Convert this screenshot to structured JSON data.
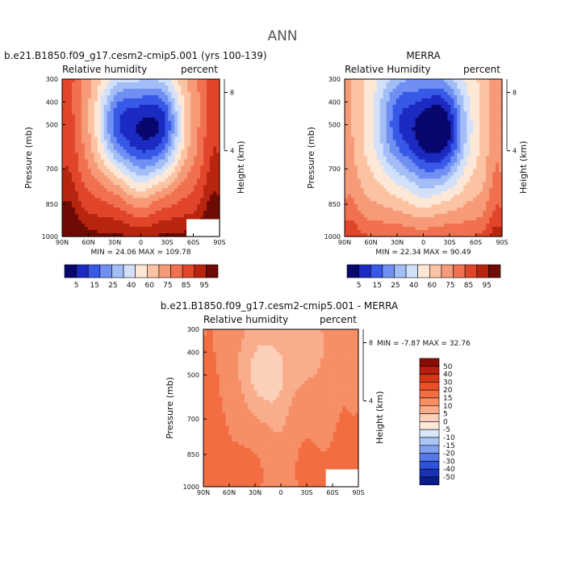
{
  "figure": {
    "title": "ANN"
  },
  "chart_data": [
    {
      "type": "heatmap",
      "id": "model",
      "title": "b.e21.B1850.f09_g17.cesm2-cmip5.001 (yrs 100-139)",
      "variable_label": "Relative humidity",
      "units_label": "percent",
      "ylabel": "Pressure (mb)",
      "ylabel_right": "Height (km)",
      "x_ticks": [
        "90N",
        "60N",
        "30N",
        "0",
        "30S",
        "60S",
        "90S"
      ],
      "y_ticks": [
        "300",
        "400",
        "500",
        "700",
        "850",
        "1000"
      ],
      "height_ticks": [
        "8",
        "4"
      ],
      "stats_text": "MIN = 24.06   MAX = 109.78",
      "min": 24.06,
      "max": 109.78
    },
    {
      "type": "heatmap",
      "id": "obs",
      "title": "MERRA",
      "variable_label": "Relative Humidity",
      "units_label": "percent",
      "ylabel": "Pressure (mb)",
      "ylabel_right": "Height (km)",
      "x_ticks": [
        "90N",
        "60N",
        "30N",
        "0",
        "30S",
        "60S",
        "90S"
      ],
      "y_ticks": [
        "300",
        "400",
        "500",
        "700",
        "850",
        "1000"
      ],
      "height_ticks": [
        "8",
        "4"
      ],
      "stats_text": "MIN = 22.34   MAX = 90.49",
      "min": 22.34,
      "max": 90.49
    },
    {
      "type": "heatmap",
      "id": "diff",
      "title": "b.e21.B1850.f09_g17.cesm2-cmip5.001 - MERRA",
      "variable_label": "Relative humidity",
      "units_label": "percent",
      "ylabel": "Pressure (mb)",
      "ylabel_right": "Height (km)",
      "x_ticks": [
        "90N",
        "60N",
        "30N",
        "0",
        "30S",
        "60S",
        "90S"
      ],
      "y_ticks": [
        "300",
        "400",
        "500",
        "700",
        "850",
        "1000"
      ],
      "height_ticks": [
        "8",
        "4"
      ],
      "stats_text": "MIN = -7.87   MAX = 32.76",
      "min": -7.87,
      "max": 32.76
    }
  ],
  "colorbars": {
    "abs": {
      "labels": [
        "5",
        "15",
        "25",
        "40",
        "60",
        "75",
        "85",
        "95"
      ],
      "colors": [
        "#08076e",
        "#1b2ac0",
        "#3858e8",
        "#6f8ff2",
        "#a3bdf6",
        "#d2e1f9",
        "#fde8d8",
        "#fbc3a2",
        "#f79a78",
        "#f1704f",
        "#e1452a",
        "#b8250f",
        "#6e0b05"
      ]
    },
    "diff": {
      "labels": [
        "50",
        "40",
        "30",
        "20",
        "15",
        "10",
        "5",
        "0",
        "-5",
        "-10",
        "-15",
        "-20",
        "-30",
        "-40",
        "-50"
      ],
      "colors": [
        "#8a0d05",
        "#b5200e",
        "#d73518",
        "#ec5029",
        "#f36d43",
        "#f68e66",
        "#f9ad8c",
        "#fcd0b8",
        "#fde8d9",
        "#d7e6f8",
        "#aac6f4",
        "#7fa1ef",
        "#5577ea",
        "#2f50dc",
        "#1a31b5",
        "#0d1c8c"
      ]
    }
  }
}
